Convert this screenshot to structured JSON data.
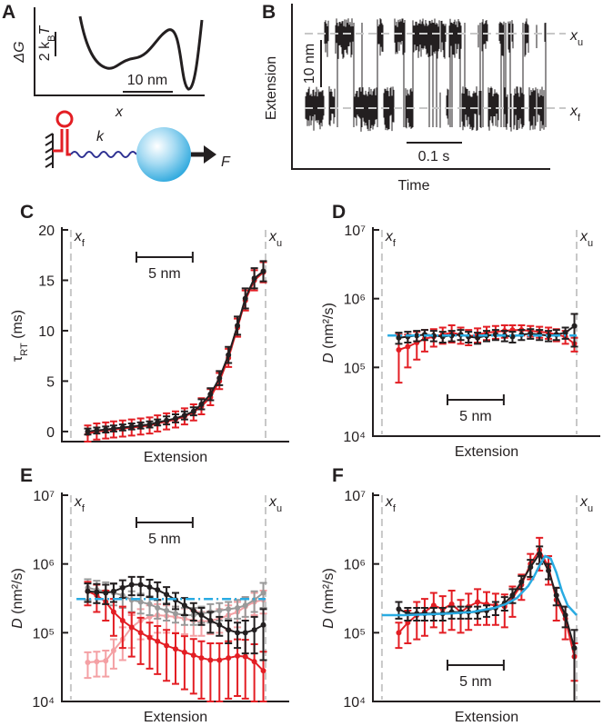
{
  "figure": {
    "panel_a": {
      "letter": "A",
      "dg_label": "ΔG",
      "energy_scale": {
        "main": "2 k",
        "sub": "B",
        "tail": "T"
      },
      "length_scale": "10 nm",
      "x_label": "x",
      "spring_label": "k",
      "force_label": "F"
    },
    "panel_b": {
      "letter": "B",
      "y_label": "Extension",
      "y_scale": "10 nm",
      "x_scale": "0.1 s",
      "x_label": "Time",
      "levels": [
        {
          "main": "x",
          "sub": "u"
        },
        {
          "main": "x",
          "sub": "f"
        }
      ]
    }
  },
  "chart_data": [
    {
      "type": "line",
      "panel": "C",
      "x_label": "Extension",
      "y_label": {
        "main": "τ",
        "sub": "RT",
        "tail": " (ms)"
      },
      "xlim": [
        -0.8,
        19.4
      ],
      "ylim": [
        -1,
        20
      ],
      "yticks": [
        0,
        5,
        10,
        15,
        20
      ],
      "ref_lines": [
        {
          "x": 0,
          "label": "x",
          "sub": "f"
        },
        {
          "x": 17.3,
          "label": "x",
          "sub": "u"
        }
      ],
      "scale_bar": {
        "length": 5,
        "label": "5 nm"
      },
      "series": [
        {
          "color": "#e31e24",
          "x": [
            1.5,
            2.3,
            3.1,
            3.8,
            4.6,
            5.4,
            6.2,
            7.0,
            7.7,
            8.5,
            9.3,
            10.1,
            10.9,
            11.6,
            12.4,
            13.2,
            14.0,
            14.8,
            15.5,
            16.3,
            17.1
          ],
          "values": [
            -0.2,
            0,
            0.1,
            0.2,
            0.3,
            0.4,
            0.5,
            0.6,
            0.8,
            1.0,
            1.2,
            1.5,
            1.9,
            2.5,
            3.4,
            5.0,
            7.3,
            10.3,
            13.0,
            15.0,
            15.8
          ],
          "errors": [
            0.8,
            0.8,
            0.8,
            0.8,
            0.8,
            0.8,
            0.8,
            0.8,
            0.8,
            0.8,
            0.8,
            0.8,
            0.8,
            0.8,
            0.8,
            0.8,
            0.9,
            0.9,
            1.0,
            1.0,
            1.0
          ]
        },
        {
          "color": "#231f20",
          "x": [
            1.5,
            2.3,
            3.1,
            3.8,
            4.6,
            5.4,
            6.2,
            7.0,
            7.7,
            8.5,
            9.3,
            10.1,
            10.9,
            11.6,
            12.4,
            13.2,
            14.0,
            14.8,
            15.5,
            16.3,
            17.1
          ],
          "values": [
            0,
            0.1,
            0.2,
            0.3,
            0.4,
            0.5,
            0.6,
            0.7,
            0.9,
            1.1,
            1.3,
            1.6,
            2.0,
            2.7,
            3.7,
            5.3,
            7.6,
            10.5,
            13.2,
            15.2,
            15.9
          ],
          "errors": [
            0.3,
            0.3,
            0.3,
            0.3,
            0.3,
            0.3,
            0.3,
            0.3,
            0.3,
            0.4,
            0.4,
            0.4,
            0.4,
            0.5,
            0.6,
            0.7,
            0.8,
            0.9,
            1.0,
            1.0,
            1.0
          ]
        }
      ]
    },
    {
      "type": "line",
      "panel": "D",
      "x_label": "Extension",
      "y_label": {
        "main": "D",
        "tail": " (nm²/s)"
      },
      "log_y": true,
      "xlim": [
        -0.8,
        19.4
      ],
      "ylim": [
        10000,
        10000000
      ],
      "yticks": [
        {
          "value": 10000,
          "label": "10⁴"
        },
        {
          "value": 100000,
          "label": "10⁵"
        },
        {
          "value": 1000000,
          "label": "10⁶"
        },
        {
          "value": 10000000,
          "label": "10⁷"
        }
      ],
      "ref_lines": [
        {
          "x": 0,
          "label": "x",
          "sub": "f"
        },
        {
          "x": 17.3,
          "label": "x",
          "sub": "u"
        }
      ],
      "scale_bar": {
        "length": 5,
        "label": "5 nm"
      },
      "series": [
        {
          "color": "#e31e24",
          "x": [
            1.5,
            2.3,
            3.1,
            3.8,
            4.6,
            5.4,
            6.2,
            7.0,
            7.7,
            8.5,
            9.3,
            10.1,
            10.9,
            11.6,
            12.4,
            13.2,
            14.0,
            14.8,
            15.5,
            16.3,
            17.1
          ],
          "values": [
            180000,
            200000,
            230000,
            260000,
            280000,
            300000,
            320000,
            300000,
            280000,
            300000,
            320000,
            330000,
            340000,
            350000,
            350000,
            340000,
            330000,
            320000,
            300000,
            280000,
            220000
          ],
          "errors": [
            120000,
            100000,
            100000,
            90000,
            80000,
            80000,
            90000,
            80000,
            70000,
            70000,
            70000,
            70000,
            70000,
            60000,
            60000,
            60000,
            60000,
            60000,
            60000,
            60000,
            50000
          ]
        },
        {
          "color": "#231f20",
          "x": [
            1.5,
            2.3,
            3.1,
            3.8,
            4.6,
            5.4,
            6.2,
            7.0,
            7.7,
            8.5,
            9.3,
            10.1,
            10.9,
            11.6,
            12.4,
            13.2,
            14.0,
            14.8,
            15.5,
            16.3,
            17.1
          ],
          "values": [
            270000,
            280000,
            290000,
            300000,
            290000,
            280000,
            290000,
            300000,
            280000,
            270000,
            290000,
            300000,
            290000,
            280000,
            300000,
            310000,
            300000,
            290000,
            300000,
            320000,
            400000
          ],
          "errors": [
            50000,
            50000,
            50000,
            50000,
            50000,
            50000,
            50000,
            50000,
            50000,
            50000,
            50000,
            50000,
            50000,
            50000,
            50000,
            50000,
            50000,
            50000,
            50000,
            60000,
            200000
          ]
        },
        {
          "color": "#29abe2",
          "style": "dashdot",
          "x": [
            0.5,
            17.3
          ],
          "values": [
            290000,
            290000
          ]
        }
      ]
    },
    {
      "type": "line",
      "panel": "E",
      "x_label": "Extension",
      "y_label": {
        "main": "D",
        "tail": " (nm²/s)"
      },
      "log_y": true,
      "xlim": [
        -0.8,
        19.4
      ],
      "ylim": [
        10000,
        10000000
      ],
      "yticks": [
        {
          "value": 10000,
          "label": "10⁴"
        },
        {
          "value": 100000,
          "label": "10⁵"
        },
        {
          "value": 1000000,
          "label": "10⁶"
        },
        {
          "value": 10000000,
          "label": "10⁷"
        }
      ],
      "ref_lines": [
        {
          "x": 0,
          "label": "x",
          "sub": "f"
        },
        {
          "x": 17.3,
          "label": "x",
          "sub": "u"
        }
      ],
      "scale_bar": {
        "length": 5,
        "label": "5 nm"
      },
      "series": [
        {
          "color": "#f4a0a4",
          "x": [
            1.5,
            2.3,
            3.1,
            3.8,
            4.6,
            5.4,
            6.2,
            7.0,
            7.7,
            8.5,
            9.3,
            10.1,
            10.9,
            11.6,
            12.4,
            13.2,
            14.0,
            14.8,
            15.5,
            16.3,
            17.1
          ],
          "values": [
            37000,
            38000,
            39000,
            55000,
            80000,
            120000,
            150000,
            170000,
            180000,
            175000,
            170000,
            160000,
            150000,
            145000,
            150000,
            160000,
            180000,
            200000,
            240000,
            280000,
            300000
          ],
          "errors": [
            15000,
            15000,
            16000,
            25000,
            40000,
            60000,
            70000,
            80000,
            80000,
            75000,
            70000,
            65000,
            60000,
            55000,
            55000,
            60000,
            70000,
            80000,
            90000,
            100000,
            110000
          ]
        },
        {
          "color": "#999999",
          "x": [
            1.5,
            2.3,
            3.1,
            3.8,
            4.6,
            5.4,
            6.2,
            7.0,
            7.7,
            8.5,
            9.3,
            10.1,
            10.9,
            11.6,
            12.4,
            13.2,
            14.0,
            14.8,
            15.5,
            16.3,
            17.1
          ],
          "values": [
            450000,
            420000,
            400000,
            380000,
            350000,
            300000,
            280000,
            260000,
            230000,
            210000,
            190000,
            180000,
            180000,
            190000,
            200000,
            210000,
            220000,
            230000,
            250000,
            300000,
            380000
          ],
          "errors": [
            150000,
            150000,
            140000,
            130000,
            120000,
            100000,
            90000,
            80000,
            70000,
            60000,
            50000,
            50000,
            50000,
            50000,
            60000,
            60000,
            60000,
            70000,
            80000,
            100000,
            150000
          ]
        },
        {
          "color": "#e31e24",
          "x": [
            1.5,
            2.3,
            3.1,
            3.8,
            4.6,
            5.4,
            6.2,
            7.0,
            7.7,
            8.5,
            9.3,
            10.1,
            10.9,
            11.6,
            12.4,
            13.2,
            14.0,
            14.8,
            15.5,
            16.3,
            17.1
          ],
          "values": [
            400000,
            350000,
            280000,
            200000,
            150000,
            120000,
            100000,
            85000,
            75000,
            65000,
            58000,
            52000,
            47000,
            43000,
            40000,
            40000,
            43000,
            46000,
            45000,
            38000,
            28000
          ],
          "errors": [
            150000,
            150000,
            130000,
            110000,
            90000,
            75000,
            65000,
            55000,
            50000,
            45000,
            40000,
            37000,
            34000,
            32000,
            30000,
            30000,
            32000,
            34000,
            34000,
            30000,
            25000
          ]
        },
        {
          "color": "#231f20",
          "x": [
            1.5,
            2.3,
            3.1,
            3.8,
            4.6,
            5.4,
            6.2,
            7.0,
            7.7,
            8.5,
            9.3,
            10.1,
            10.9,
            11.6,
            12.4,
            13.2,
            14.0,
            14.8,
            15.5,
            16.3,
            17.1
          ],
          "values": [
            400000,
            390000,
            380000,
            400000,
            450000,
            500000,
            500000,
            460000,
            420000,
            360000,
            300000,
            250000,
            210000,
            180000,
            150000,
            130000,
            110000,
            100000,
            100000,
            110000,
            130000
          ],
          "errors": [
            120000,
            120000,
            120000,
            120000,
            130000,
            150000,
            150000,
            130000,
            120000,
            100000,
            80000,
            70000,
            60000,
            50000,
            50000,
            40000,
            40000,
            40000,
            50000,
            60000,
            90000
          ]
        },
        {
          "color": "#29abe2",
          "style": "dashdot",
          "x": [
            0.5,
            17.3
          ],
          "values": [
            310000,
            310000
          ]
        }
      ]
    },
    {
      "type": "line",
      "panel": "F",
      "x_label": "Extension",
      "y_label": {
        "main": "D",
        "tail": " (nm²/s)"
      },
      "log_y": true,
      "xlim": [
        -0.8,
        19.4
      ],
      "ylim": [
        10000,
        10000000
      ],
      "yticks": [
        {
          "value": 10000,
          "label": "10⁴"
        },
        {
          "value": 100000,
          "label": "10⁵"
        },
        {
          "value": 1000000,
          "label": "10⁶"
        },
        {
          "value": 10000000,
          "label": "10⁷"
        }
      ],
      "ref_lines": [
        {
          "x": 0,
          "label": "x",
          "sub": "f"
        },
        {
          "x": 17.3,
          "label": "x",
          "sub": "u"
        }
      ],
      "scale_bar": {
        "length": 5,
        "label": "5 nm"
      },
      "series": [
        {
          "color": "#e31e24",
          "x": [
            1.5,
            2.3,
            3.1,
            3.8,
            4.6,
            5.4,
            6.2,
            7.0,
            7.7,
            8.5,
            9.3,
            10.1,
            10.9,
            11.6,
            12.4,
            13.2,
            14.0,
            14.8,
            15.5,
            16.3,
            17.1
          ],
          "values": [
            100000,
            140000,
            180000,
            200000,
            250000,
            220000,
            260000,
            200000,
            240000,
            280000,
            260000,
            250000,
            240000,
            320000,
            500000,
            1000000,
            1600000,
            900000,
            300000,
            160000,
            45000
          ],
          "errors": [
            40000,
            70000,
            100000,
            110000,
            130000,
            120000,
            150000,
            100000,
            130000,
            150000,
            130000,
            120000,
            120000,
            150000,
            200000,
            400000,
            800000,
            400000,
            150000,
            80000,
            25000
          ]
        },
        {
          "color": "#231f20",
          "x": [
            1.5,
            2.3,
            3.1,
            3.8,
            4.6,
            5.4,
            6.2,
            7.0,
            7.7,
            8.5,
            9.3,
            10.1,
            10.9,
            11.6,
            12.4,
            13.2,
            14.0,
            14.8,
            15.5,
            16.3,
            17.1
          ],
          "values": [
            220000,
            190000,
            190000,
            190000,
            190000,
            190000,
            200000,
            200000,
            200000,
            200000,
            210000,
            230000,
            270000,
            350000,
            550000,
            900000,
            1400000,
            800000,
            350000,
            180000,
            60000
          ],
          "errors": [
            60000,
            40000,
            40000,
            40000,
            40000,
            40000,
            40000,
            40000,
            40000,
            40000,
            40000,
            50000,
            60000,
            80000,
            120000,
            250000,
            400000,
            200000,
            100000,
            60000,
            50000
          ]
        },
        {
          "color": "#29abe2",
          "style": "solid",
          "x": [
            0,
            2,
            4,
            6,
            8,
            10,
            11,
            12,
            13,
            13.5,
            14,
            14.5,
            15,
            15.5,
            16,
            16.5,
            17.3
          ],
          "values": [
            180000,
            180000,
            185000,
            190000,
            200000,
            230000,
            260000,
            320000,
            480000,
            650000,
            950000,
            1300000,
            1200000,
            750000,
            400000,
            250000,
            180000
          ]
        }
      ]
    }
  ]
}
